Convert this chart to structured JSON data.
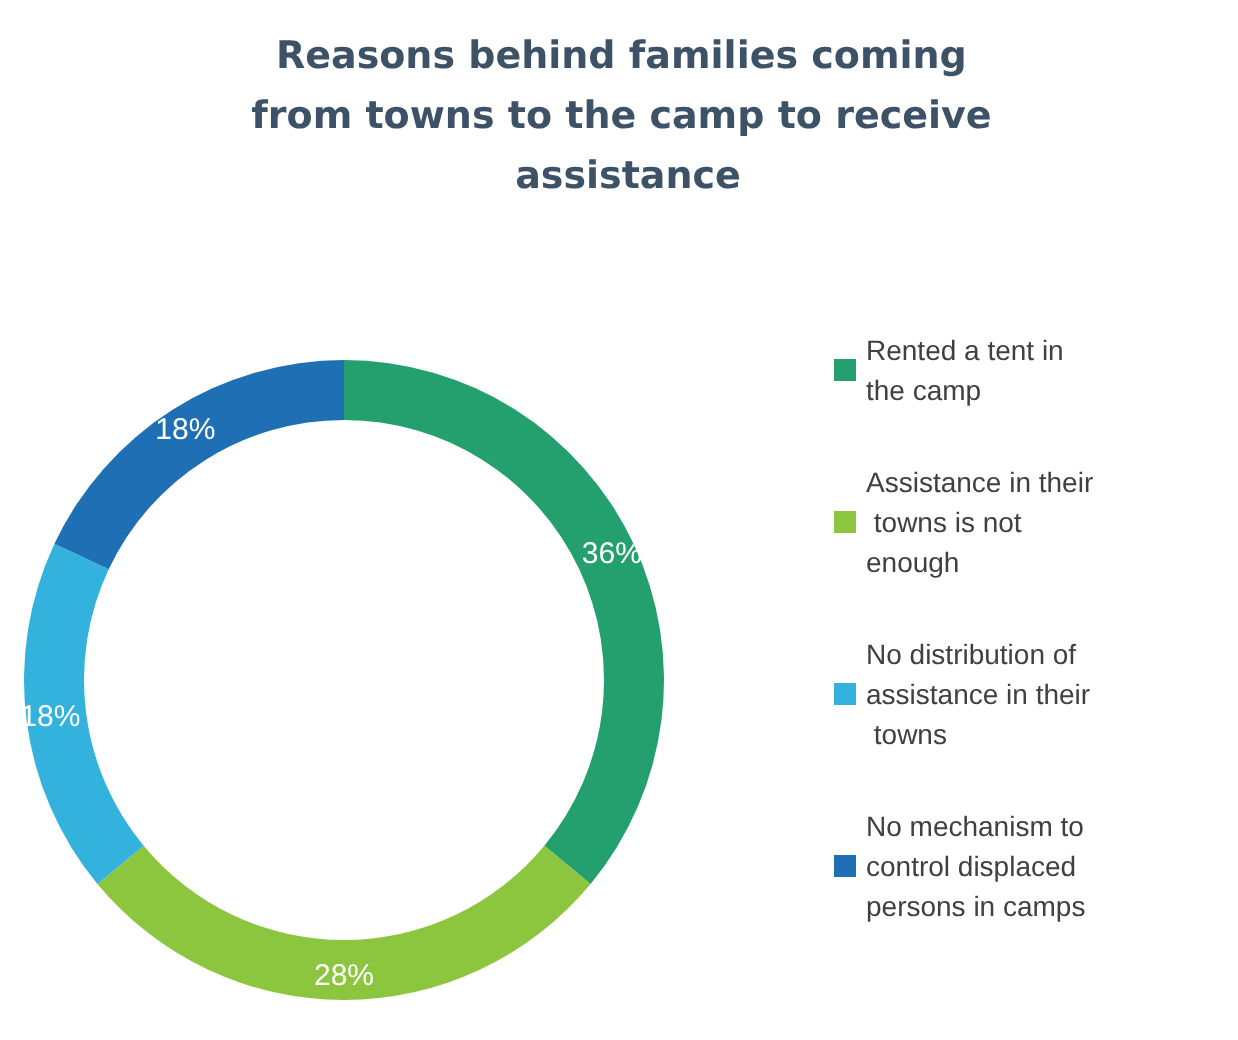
{
  "chart_data": {
    "type": "donut",
    "title": "Reasons behind families coming from towns to the camp to receive assistance",
    "categories": [
      "Rented a tent in the camp",
      "Assistance in their towns is not enough",
      "No distribution of assistance in their towns",
      "No mechanism to control displaced persons in camps"
    ],
    "values": [
      36,
      28,
      18,
      18
    ],
    "value_labels": [
      "36%",
      "28%",
      "18%",
      "18%"
    ],
    "colors": [
      "#23a06e",
      "#8cc63f",
      "#33b2de",
      "#1f6fb4"
    ],
    "legend": "right"
  }
}
